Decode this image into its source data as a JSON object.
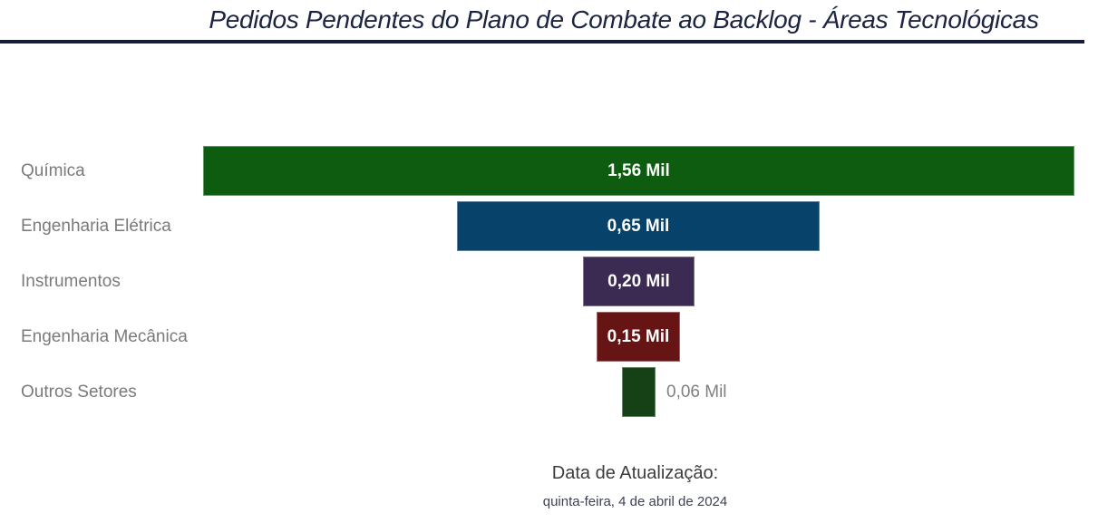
{
  "header": {
    "title": "Pedidos Pendentes do Plano de Combate ao Backlog - Áreas Tecnológicas"
  },
  "chart_data": {
    "type": "bar",
    "variant": "funnel-centered",
    "orientation": "horizontal",
    "title": "Pedidos Pendentes do Plano de Combate ao Backlog - Áreas Tecnológicas",
    "categories": [
      "Química",
      "Engenharia Elétrica",
      "Instrumentos",
      "Engenharia Mecânica",
      "Outros Setores"
    ],
    "values": [
      1.56,
      0.65,
      0.2,
      0.15,
      0.06
    ],
    "value_labels": [
      "1,56 Mil",
      "0,65 Mil",
      "0,20 Mil",
      "0,15 Mil",
      "0,06 Mil"
    ],
    "unit": "Mil",
    "bar_colors": [
      "#0e5c10",
      "#064269",
      "#3b2a52",
      "#671414",
      "#164116"
    ],
    "value_label_inside": [
      true,
      true,
      true,
      true,
      false
    ],
    "category_label_color": "#7a7a7a",
    "value_label_color_inside": "#ffffff",
    "value_label_color_outside": "#808080",
    "legend": "off",
    "grid": "off",
    "axis_labels": "off"
  },
  "footer": {
    "label": "Data de Atualização:",
    "value": "quinta-feira, 4 de abril de 2024"
  },
  "colors": {
    "title": "#1b2440",
    "title_rule": "#161d38",
    "background": "#ffffff"
  }
}
